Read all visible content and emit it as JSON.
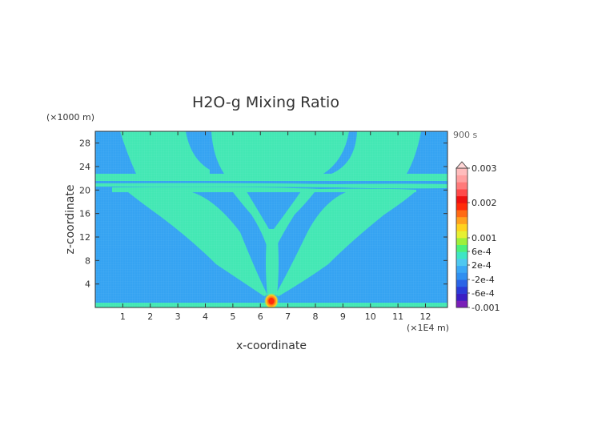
{
  "chart_data": {
    "type": "heatmap",
    "title": "H2O-g Mixing Ratio",
    "xlabel": "x-coordinate",
    "ylabel": "z-coordinate",
    "x_unit": "(×1E4 m)",
    "y_unit": "(×1000 m)",
    "time_label": "900 s",
    "x_ticks": [
      1,
      2,
      3,
      4,
      5,
      6,
      7,
      8,
      9,
      10,
      11,
      12
    ],
    "y_ticks": [
      4,
      8,
      12,
      16,
      20,
      24,
      28
    ],
    "xlim": [
      0,
      12.8
    ],
    "ylim": [
      0,
      30
    ],
    "colorbar": {
      "labels": [
        "0.003",
        "0.002",
        "0.001",
        "6e-4",
        "2e-4",
        "-2e-4",
        "-6e-4",
        "-0.001"
      ],
      "levels": [
        {
          "color": "#7a1fb8"
        },
        {
          "color": "#3a1ec4"
        },
        {
          "color": "#2a3bd8"
        },
        {
          "color": "#2a64e6"
        },
        {
          "color": "#2f8ff0"
        },
        {
          "color": "#3aa8f5"
        },
        {
          "color": "#4ec8f0"
        },
        {
          "color": "#3ee6c4"
        },
        {
          "color": "#4cf07a"
        },
        {
          "color": "#9ef03a"
        },
        {
          "color": "#e6f032"
        },
        {
          "color": "#ffd21e"
        },
        {
          "color": "#ffa11e"
        },
        {
          "color": "#ff6a14"
        },
        {
          "color": "#ff2a0a"
        },
        {
          "color": "#ee1010"
        },
        {
          "color": "#ff4a4a"
        },
        {
          "color": "#ff7a7a"
        },
        {
          "color": "#ffa0a0"
        },
        {
          "color": "#ffbcbc"
        }
      ]
    },
    "background_color": "#35a3f2",
    "feature_color": "#43e8b4",
    "source_color": "#ff2a0a"
  }
}
